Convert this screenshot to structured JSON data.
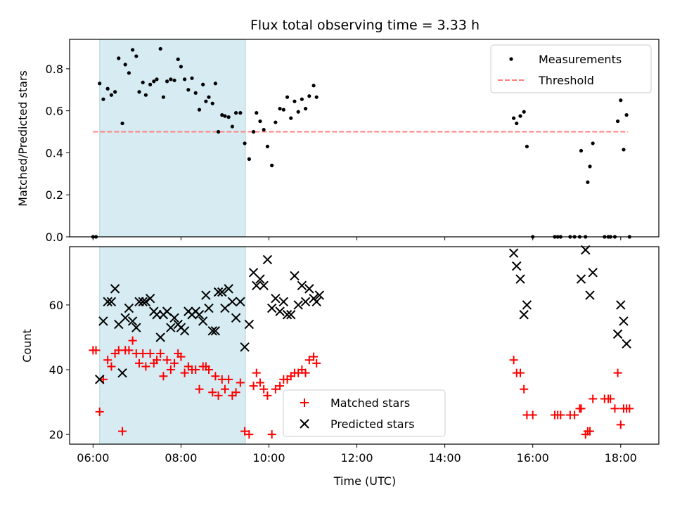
{
  "title": "Flux total observing time = 3.33 h",
  "chart_data": [
    {
      "type": "scatter",
      "ylabel": "Matched/Predicted stars",
      "xlim": [
        5.467,
        18.867
      ],
      "ylim": [
        0.0,
        0.94
      ],
      "yticks": [
        0.0,
        0.2,
        0.4,
        0.6,
        0.8
      ],
      "ytick_labels": [
        "0.0",
        "0.2",
        "0.4",
        "0.6",
        "0.8"
      ],
      "shaded_span": {
        "x": [
          6.15,
          9.467
        ],
        "color": "#add8e6"
      },
      "threshold": {
        "name": "Threshold",
        "y": 0.5,
        "x": [
          6.0,
          18.167
        ],
        "color": "#ff7f7f"
      },
      "series": [
        {
          "name": "Measurements",
          "color": "#000000",
          "points": [
            [
              6.0,
              0.0
            ],
            [
              6.067,
              0.0
            ],
            [
              6.15,
              0.73
            ],
            [
              6.233,
              0.655
            ],
            [
              6.333,
              0.705
            ],
            [
              6.417,
              0.675
            ],
            [
              6.5,
              0.69
            ],
            [
              6.583,
              0.85
            ],
            [
              6.667,
              0.54
            ],
            [
              6.733,
              0.82
            ],
            [
              6.817,
              0.78
            ],
            [
              6.9,
              0.89
            ],
            [
              6.983,
              0.86
            ],
            [
              7.05,
              0.69
            ],
            [
              7.133,
              0.735
            ],
            [
              7.2,
              0.675
            ],
            [
              7.3,
              0.725
            ],
            [
              7.383,
              0.74
            ],
            [
              7.45,
              0.75
            ],
            [
              7.533,
              0.895
            ],
            [
              7.6,
              0.665
            ],
            [
              7.683,
              0.74
            ],
            [
              7.767,
              0.75
            ],
            [
              7.85,
              0.745
            ],
            [
              7.933,
              0.845
            ],
            [
              8.0,
              0.81
            ],
            [
              8.083,
              0.75
            ],
            [
              8.167,
              0.7
            ],
            [
              8.25,
              0.755
            ],
            [
              8.333,
              0.685
            ],
            [
              8.417,
              0.605
            ],
            [
              8.5,
              0.725
            ],
            [
              8.567,
              0.645
            ],
            [
              8.633,
              0.665
            ],
            [
              8.717,
              0.635
            ],
            [
              8.783,
              0.73
            ],
            [
              8.85,
              0.5
            ],
            [
              8.933,
              0.58
            ],
            [
              9.0,
              0.575
            ],
            [
              9.083,
              0.57
            ],
            [
              9.167,
              0.525
            ],
            [
              9.25,
              0.59
            ],
            [
              9.35,
              0.59
            ],
            [
              9.45,
              0.445
            ],
            [
              9.55,
              0.37
            ],
            [
              9.65,
              0.5
            ],
            [
              9.717,
              0.59
            ],
            [
              9.8,
              0.55
            ],
            [
              9.883,
              0.51
            ],
            [
              9.967,
              0.43
            ],
            [
              10.067,
              0.34
            ],
            [
              10.15,
              0.545
            ],
            [
              10.25,
              0.61
            ],
            [
              10.333,
              0.605
            ],
            [
              10.417,
              0.665
            ],
            [
              10.5,
              0.565
            ],
            [
              10.583,
              0.645
            ],
            [
              10.667,
              0.595
            ],
            [
              10.75,
              0.655
            ],
            [
              10.833,
              0.61
            ],
            [
              10.917,
              0.67
            ],
            [
              11.017,
              0.72
            ],
            [
              11.083,
              0.665
            ],
            [
              15.567,
              0.565
            ],
            [
              15.633,
              0.54
            ],
            [
              15.717,
              0.575
            ],
            [
              15.8,
              0.595
            ],
            [
              15.867,
              0.43
            ],
            [
              16.0,
              0.0
            ],
            [
              16.5,
              0.0
            ],
            [
              16.567,
              0.0
            ],
            [
              16.633,
              0.0
            ],
            [
              16.85,
              0.0
            ],
            [
              16.95,
              0.0
            ],
            [
              17.067,
              0.0
            ],
            [
              17.1,
              0.41
            ],
            [
              17.2,
              0.0
            ],
            [
              17.25,
              0.26
            ],
            [
              17.3,
              0.335
            ],
            [
              17.367,
              0.445
            ],
            [
              17.633,
              0.0
            ],
            [
              17.717,
              0.0
            ],
            [
              17.767,
              0.0
            ],
            [
              17.867,
              0.0
            ],
            [
              17.933,
              0.55
            ],
            [
              18.0,
              0.65
            ],
            [
              18.067,
              0.415
            ],
            [
              18.133,
              0.58
            ],
            [
              18.2,
              0.0
            ]
          ]
        }
      ],
      "legend": {
        "placement": "upper-right",
        "entries": [
          "Measurements",
          "Threshold"
        ]
      }
    },
    {
      "type": "scatter",
      "xlabel": "Time (UTC)",
      "ylabel": "Count",
      "xlim": [
        5.467,
        18.867
      ],
      "ylim": [
        17,
        78
      ],
      "xticks": [
        6,
        8,
        10,
        12,
        14,
        16,
        18
      ],
      "xtick_labels": [
        "06:00",
        "08:00",
        "10:00",
        "12:00",
        "14:00",
        "16:00",
        "18:00"
      ],
      "yticks": [
        20,
        40,
        60
      ],
      "ytick_labels": [
        "20",
        "40",
        "60"
      ],
      "shaded_span": {
        "x": [
          6.15,
          9.467
        ],
        "color": "#add8e6"
      },
      "series": [
        {
          "name": "Matched stars",
          "marker": "plus",
          "color": "#ff0000",
          "points": [
            [
              6.0,
              46
            ],
            [
              6.067,
              46
            ],
            [
              6.15,
              27
            ],
            [
              6.233,
              37
            ],
            [
              6.333,
              43
            ],
            [
              6.417,
              41
            ],
            [
              6.5,
              45
            ],
            [
              6.583,
              46
            ],
            [
              6.667,
              21
            ],
            [
              6.733,
              46
            ],
            [
              6.817,
              46
            ],
            [
              6.9,
              49
            ],
            [
              6.983,
              45
            ],
            [
              7.05,
              42
            ],
            [
              7.133,
              45
            ],
            [
              7.2,
              41
            ],
            [
              7.3,
              45
            ],
            [
              7.383,
              42
            ],
            [
              7.45,
              43
            ],
            [
              7.533,
              45
            ],
            [
              7.6,
              38
            ],
            [
              7.683,
              43
            ],
            [
              7.767,
              40
            ],
            [
              7.85,
              42
            ],
            [
              7.933,
              45
            ],
            [
              8.0,
              44
            ],
            [
              8.083,
              39
            ],
            [
              8.167,
              41
            ],
            [
              8.25,
              40
            ],
            [
              8.333,
              40
            ],
            [
              8.417,
              34
            ],
            [
              8.5,
              41
            ],
            [
              8.567,
              41
            ],
            [
              8.633,
              40
            ],
            [
              8.717,
              33
            ],
            [
              8.783,
              38
            ],
            [
              8.85,
              32
            ],
            [
              8.933,
              37
            ],
            [
              9.0,
              34
            ],
            [
              9.083,
              37
            ],
            [
              9.167,
              32
            ],
            [
              9.25,
              33
            ],
            [
              9.35,
              36
            ],
            [
              9.45,
              21
            ],
            [
              9.55,
              20
            ],
            [
              9.65,
              35
            ],
            [
              9.717,
              39
            ],
            [
              9.8,
              36
            ],
            [
              9.883,
              34
            ],
            [
              9.967,
              32
            ],
            [
              10.067,
              20
            ],
            [
              10.15,
              34
            ],
            [
              10.25,
              35
            ],
            [
              10.333,
              37
            ],
            [
              10.417,
              37
            ],
            [
              10.5,
              38
            ],
            [
              10.583,
              39
            ],
            [
              10.667,
              39
            ],
            [
              10.75,
              40
            ],
            [
              10.833,
              39
            ],
            [
              10.917,
              43
            ],
            [
              11.017,
              44
            ],
            [
              11.083,
              42
            ],
            [
              15.567,
              43
            ],
            [
              15.633,
              39
            ],
            [
              15.717,
              39
            ],
            [
              15.8,
              34
            ],
            [
              15.867,
              26
            ],
            [
              16.0,
              26
            ],
            [
              16.5,
              26
            ],
            [
              16.567,
              26
            ],
            [
              16.633,
              26
            ],
            [
              16.85,
              26
            ],
            [
              16.95,
              26
            ],
            [
              17.067,
              28
            ],
            [
              17.1,
              28
            ],
            [
              17.2,
              20
            ],
            [
              17.25,
              21
            ],
            [
              17.3,
              21
            ],
            [
              17.367,
              31
            ],
            [
              17.633,
              31
            ],
            [
              17.717,
              31
            ],
            [
              17.767,
              31
            ],
            [
              17.867,
              28
            ],
            [
              17.933,
              39
            ],
            [
              18.0,
              23
            ],
            [
              18.067,
              28
            ],
            [
              18.133,
              28
            ],
            [
              18.2,
              28
            ]
          ]
        },
        {
          "name": "Predicted stars",
          "marker": "x",
          "color": "#000000",
          "points": [
            [
              6.15,
              37
            ],
            [
              6.233,
              55
            ],
            [
              6.333,
              61
            ],
            [
              6.417,
              61
            ],
            [
              6.5,
              65
            ],
            [
              6.583,
              54
            ],
            [
              6.667,
              39
            ],
            [
              6.733,
              56
            ],
            [
              6.817,
              59
            ],
            [
              6.9,
              55
            ],
            [
              6.983,
              53
            ],
            [
              7.05,
              61
            ],
            [
              7.133,
              61
            ],
            [
              7.2,
              61
            ],
            [
              7.3,
              62
            ],
            [
              7.383,
              58
            ],
            [
              7.45,
              57
            ],
            [
              7.533,
              50
            ],
            [
              7.6,
              57
            ],
            [
              7.683,
              58
            ],
            [
              7.767,
              53
            ],
            [
              7.85,
              56
            ],
            [
              7.933,
              54
            ],
            [
              8.0,
              53
            ],
            [
              8.083,
              52
            ],
            [
              8.167,
              58
            ],
            [
              8.25,
              57
            ],
            [
              8.333,
              58
            ],
            [
              8.417,
              57
            ],
            [
              8.5,
              55
            ],
            [
              8.567,
              63
            ],
            [
              8.633,
              59
            ],
            [
              8.717,
              52
            ],
            [
              8.783,
              52
            ],
            [
              8.85,
              64
            ],
            [
              8.933,
              64
            ],
            [
              9.0,
              59
            ],
            [
              9.083,
              65
            ],
            [
              9.167,
              61
            ],
            [
              9.25,
              56
            ],
            [
              9.35,
              61
            ],
            [
              9.45,
              47
            ],
            [
              9.55,
              54
            ],
            [
              9.65,
              70
            ],
            [
              9.717,
              66
            ],
            [
              9.8,
              68
            ],
            [
              9.883,
              66
            ],
            [
              9.967,
              74
            ],
            [
              10.067,
              59
            ],
            [
              10.15,
              62
            ],
            [
              10.25,
              58
            ],
            [
              10.333,
              61
            ],
            [
              10.417,
              57
            ],
            [
              10.5,
              57
            ],
            [
              10.583,
              69
            ],
            [
              10.667,
              60
            ],
            [
              10.75,
              66
            ],
            [
              10.833,
              61
            ],
            [
              10.917,
              65
            ],
            [
              11.017,
              62
            ],
            [
              11.083,
              61
            ],
            [
              11.15,
              63
            ],
            [
              15.567,
              76
            ],
            [
              15.633,
              72
            ],
            [
              15.717,
              68
            ],
            [
              15.8,
              57
            ],
            [
              15.867,
              60
            ],
            [
              17.1,
              68
            ],
            [
              17.2,
              77
            ],
            [
              17.3,
              63
            ],
            [
              17.367,
              70
            ],
            [
              17.933,
              51
            ],
            [
              18.0,
              60
            ],
            [
              18.067,
              55
            ],
            [
              18.133,
              48
            ]
          ]
        }
      ],
      "legend": {
        "placement": "lower-center",
        "entries": [
          "Matched stars",
          "Predicted stars"
        ]
      }
    }
  ]
}
